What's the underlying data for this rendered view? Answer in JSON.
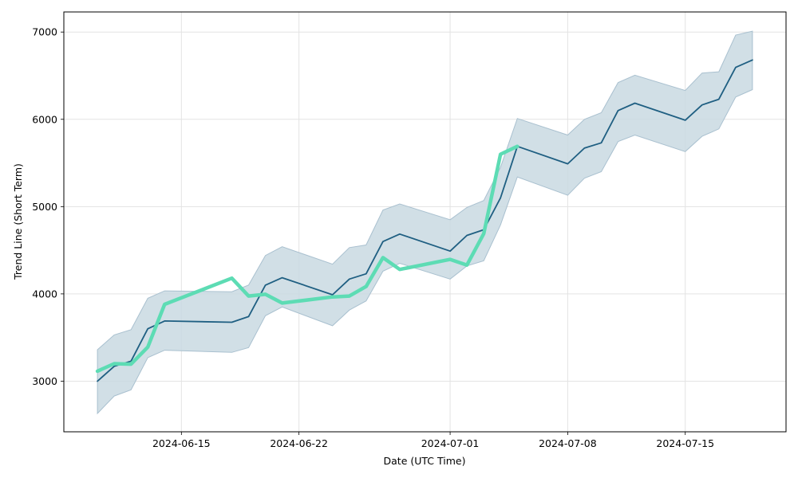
{
  "chart_data": {
    "type": "line",
    "title": "",
    "xlabel": "Date (UTC Time)",
    "ylabel": "Trend Line (Short Term)",
    "x_tick_labels": [
      "2024-06-15",
      "2024-06-22",
      "2024-07-01",
      "2024-07-08",
      "2024-07-15"
    ],
    "y_tick_labels": [
      "3000",
      "4000",
      "5000",
      "6000",
      "7000"
    ],
    "y_ticks": [
      3000,
      4000,
      5000,
      6000,
      7000
    ],
    "ylim": [
      2420,
      7230
    ],
    "xlim": [
      "2024-06-08",
      "2024-07-21"
    ],
    "grid": true,
    "legend": "none",
    "colors": {
      "trend": "#1f5f82",
      "band_fill": "#c9d9e2",
      "band_edge": "#a9c0cf",
      "actual": "#5ddcb4",
      "grid": "#e3e3e3"
    },
    "series": [
      {
        "role": "trend",
        "x": [
          "2024-06-10",
          "2024-06-11",
          "2024-06-12",
          "2024-06-13",
          "2024-06-14",
          "2024-06-18",
          "2024-06-19",
          "2024-06-20",
          "2024-06-21",
          "2024-06-24",
          "2024-06-25",
          "2024-06-26",
          "2024-06-27",
          "2024-06-28",
          "2024-07-01",
          "2024-07-02",
          "2024-07-03",
          "2024-07-04",
          "2024-07-05",
          "2024-07-08",
          "2024-07-09",
          "2024-07-10",
          "2024-07-11",
          "2024-07-12",
          "2024-07-15",
          "2024-07-16",
          "2024-07-17",
          "2024-07-18",
          "2024-07-19"
        ],
        "values": [
          3000,
          3170,
          3230,
          3600,
          3690,
          3675,
          3740,
          4100,
          4185,
          3990,
          4170,
          4230,
          4600,
          4685,
          4490,
          4670,
          4735,
          5100,
          5690,
          5490,
          5670,
          5730,
          6100,
          6185,
          5990,
          6165,
          6230,
          6595,
          6680
        ]
      },
      {
        "role": "band_upper",
        "x": [
          "2024-06-10",
          "2024-06-11",
          "2024-06-12",
          "2024-06-13",
          "2024-06-14",
          "2024-06-18",
          "2024-06-19",
          "2024-06-20",
          "2024-06-21",
          "2024-06-24",
          "2024-06-25",
          "2024-06-26",
          "2024-06-27",
          "2024-06-28",
          "2024-07-01",
          "2024-07-02",
          "2024-07-03",
          "2024-07-04",
          "2024-07-05",
          "2024-07-08",
          "2024-07-09",
          "2024-07-10",
          "2024-07-11",
          "2024-07-12",
          "2024-07-15",
          "2024-07-16",
          "2024-07-17",
          "2024-07-18",
          "2024-07-19"
        ],
        "values": [
          3360,
          3530,
          3590,
          3950,
          4035,
          4025,
          4100,
          4440,
          4540,
          4340,
          4530,
          4560,
          4960,
          5030,
          4850,
          4990,
          5070,
          5450,
          6010,
          5820,
          6000,
          6075,
          6420,
          6505,
          6330,
          6530,
          6545,
          6965,
          7010
        ]
      },
      {
        "role": "band_lower",
        "x": [
          "2024-06-10",
          "2024-06-11",
          "2024-06-12",
          "2024-06-13",
          "2024-06-14",
          "2024-06-18",
          "2024-06-19",
          "2024-06-20",
          "2024-06-21",
          "2024-06-24",
          "2024-06-25",
          "2024-06-26",
          "2024-06-27",
          "2024-06-28",
          "2024-07-01",
          "2024-07-02",
          "2024-07-03",
          "2024-07-04",
          "2024-07-05",
          "2024-07-08",
          "2024-07-09",
          "2024-07-10",
          "2024-07-11",
          "2024-07-12",
          "2024-07-15",
          "2024-07-16",
          "2024-07-17",
          "2024-07-18",
          "2024-07-19"
        ],
        "values": [
          2630,
          2830,
          2900,
          3270,
          3355,
          3330,
          3385,
          3750,
          3850,
          3635,
          3815,
          3920,
          4260,
          4350,
          4170,
          4320,
          4380,
          4790,
          5340,
          5130,
          5325,
          5400,
          5745,
          5820,
          5630,
          5805,
          5890,
          6255,
          6340
        ]
      },
      {
        "role": "actual",
        "x": [
          "2024-06-10",
          "2024-06-11",
          "2024-06-12",
          "2024-06-13",
          "2024-06-14",
          "2024-06-18",
          "2024-06-19",
          "2024-06-20",
          "2024-06-21",
          "2024-06-24",
          "2024-06-25",
          "2024-06-26",
          "2024-06-27",
          "2024-06-28",
          "2024-07-01",
          "2024-07-02",
          "2024-07-03",
          "2024-07-04",
          "2024-07-05"
        ],
        "values": [
          3115,
          3200,
          3195,
          3390,
          3880,
          4180,
          3975,
          3995,
          3895,
          3965,
          3975,
          4085,
          4415,
          4280,
          4395,
          4330,
          4690,
          5600,
          5690
        ]
      }
    ]
  }
}
